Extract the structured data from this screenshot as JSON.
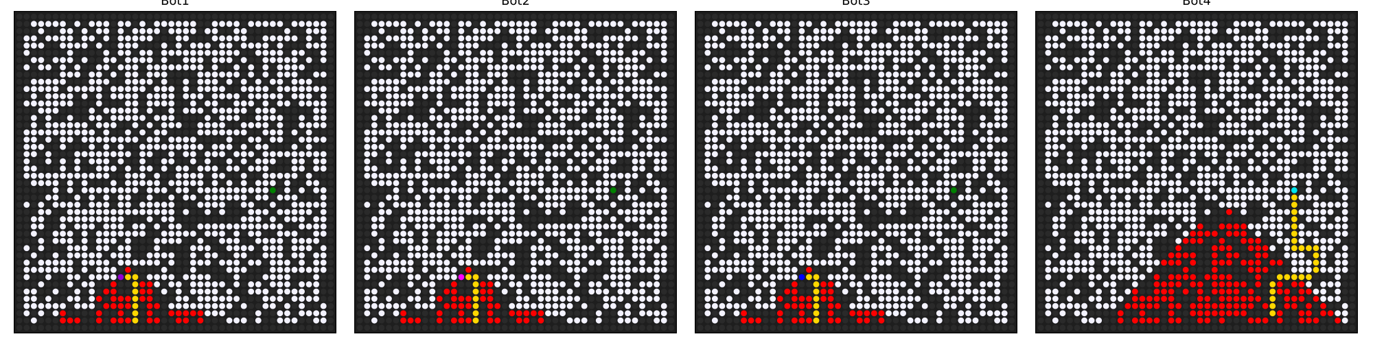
{
  "panels": [
    {
      "title": "Bot1",
      "bot": [
        14,
        36
      ],
      "bot_color": "#9400d3",
      "goal": [
        35,
        24
      ],
      "fire_extent": 2,
      "path": [
        [
          14,
          36
        ],
        [
          15,
          36
        ],
        [
          16,
          36
        ],
        [
          16,
          37
        ],
        [
          16,
          38
        ],
        [
          16,
          39
        ],
        [
          16,
          40
        ],
        [
          16,
          41
        ],
        [
          16,
          42
        ]
      ]
    },
    {
      "title": "Bot2",
      "bot": [
        14,
        36
      ],
      "bot_color": "#ff00ff",
      "goal": [
        35,
        24
      ],
      "fire_extent": 2,
      "path": [
        [
          14,
          36
        ],
        [
          15,
          36
        ],
        [
          16,
          36
        ],
        [
          16,
          37
        ],
        [
          16,
          38
        ],
        [
          16,
          39
        ],
        [
          16,
          40
        ],
        [
          16,
          41
        ],
        [
          16,
          42
        ]
      ]
    },
    {
      "title": "Bot3",
      "bot": [
        14,
        36
      ],
      "bot_color": "#0000ff",
      "goal": [
        35,
        24
      ],
      "fire_extent": 2,
      "path": [
        [
          14,
          36
        ],
        [
          15,
          36
        ],
        [
          16,
          36
        ],
        [
          16,
          37
        ],
        [
          16,
          38
        ],
        [
          16,
          39
        ],
        [
          16,
          40
        ],
        [
          16,
          41
        ],
        [
          16,
          42
        ]
      ]
    },
    {
      "title": "Bot4",
      "bot": [
        35,
        24
      ],
      "bot_color": "#00e5ee",
      "goal": [
        35,
        24
      ],
      "fire_extent": 4,
      "path": [
        [
          35,
          24
        ],
        [
          35,
          25
        ],
        [
          35,
          26
        ],
        [
          35,
          27
        ],
        [
          35,
          28
        ],
        [
          35,
          29
        ],
        [
          35,
          30
        ],
        [
          35,
          31
        ],
        [
          35,
          32
        ],
        [
          36,
          32
        ],
        [
          37,
          32
        ],
        [
          38,
          32
        ],
        [
          38,
          33
        ],
        [
          38,
          34
        ],
        [
          38,
          35
        ],
        [
          37,
          36
        ],
        [
          36,
          36
        ],
        [
          35,
          36
        ],
        [
          34,
          36
        ],
        [
          33,
          36
        ],
        [
          32,
          37
        ],
        [
          32,
          38
        ],
        [
          32,
          39
        ],
        [
          32,
          40
        ],
        [
          32,
          41
        ]
      ]
    }
  ],
  "colors": {
    "frame": "#000000",
    "grid_bg": "#1e1e1e",
    "wall": "#2a2a2a",
    "open": "#f3f2ff",
    "fire": "#ff0000",
    "path": "#ffd700",
    "goal": "#008000"
  },
  "grid_size": 44
}
